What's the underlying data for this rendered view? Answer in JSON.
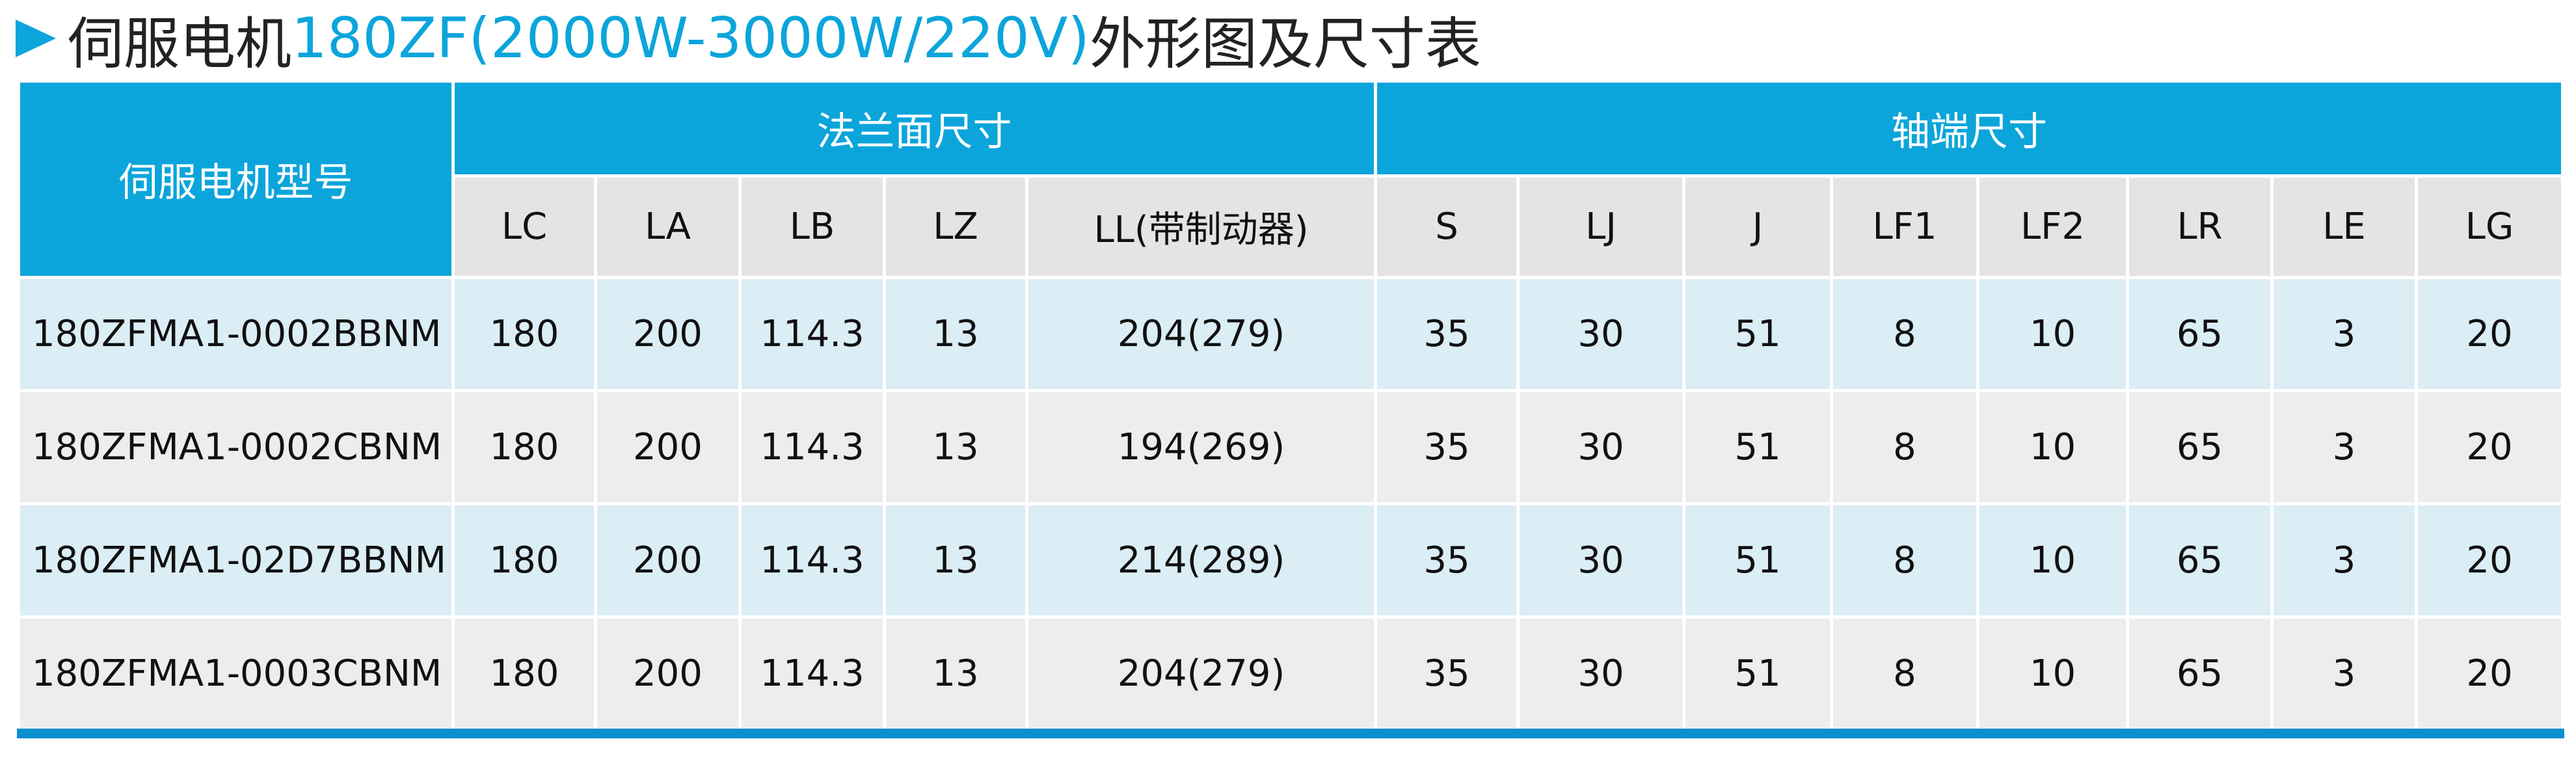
{
  "title": {
    "prefix": "伺服电机",
    "highlight": "180ZF(2000W-3000W/220V)",
    "suffix": "外形图及尺寸表"
  },
  "table": {
    "model_header": "伺服电机型号",
    "group_headers": [
      {
        "label": "法兰面尺寸",
        "span": 5
      },
      {
        "label": "轴端尺寸",
        "span": 8
      }
    ],
    "columns": [
      "LC",
      "LA",
      "LB",
      "LZ",
      "LL(带制动器)",
      "S",
      "LJ",
      "J",
      "LF1",
      "LF2",
      "LR",
      "LE",
      "LG"
    ],
    "rows": [
      [
        "180ZFMA1-0002BBNM",
        "180",
        "200",
        "114.3",
        "13",
        "204(279)",
        "35",
        "30",
        "51",
        "8",
        "10",
        "65",
        "3",
        "20"
      ],
      [
        "180ZFMA1-0002CBNM",
        "180",
        "200",
        "114.3",
        "13",
        "194(269)",
        "35",
        "30",
        "51",
        "8",
        "10",
        "65",
        "3",
        "20"
      ],
      [
        "180ZFMA1-02D7BBNM",
        "180",
        "200",
        "114.3",
        "13",
        "214(289)",
        "35",
        "30",
        "51",
        "8",
        "10",
        "65",
        "3",
        "20"
      ],
      [
        "180ZFMA1-0003CBNM",
        "180",
        "200",
        "114.3",
        "13",
        "204(279)",
        "35",
        "30",
        "51",
        "8",
        "10",
        "65",
        "3",
        "20"
      ]
    ]
  }
}
